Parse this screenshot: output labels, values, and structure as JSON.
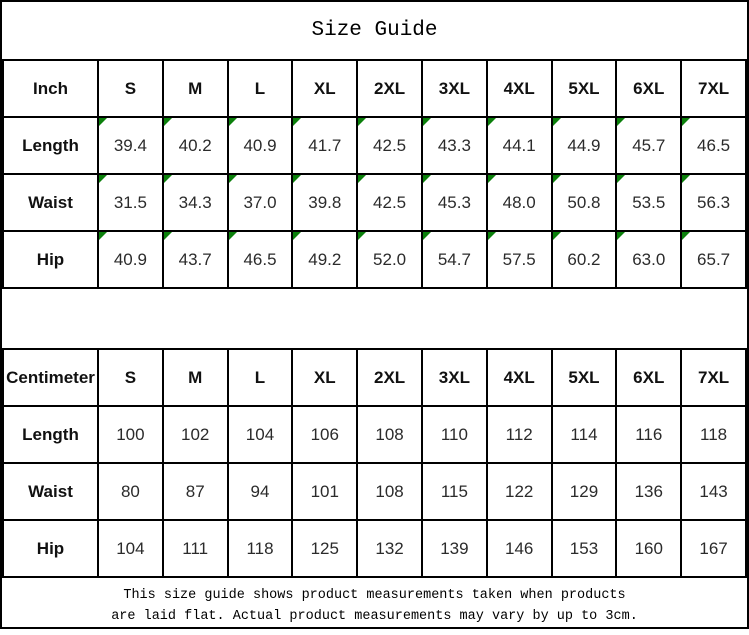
{
  "title": "Size Guide",
  "sizes": [
    "S",
    "M",
    "L",
    "XL",
    "2XL",
    "3XL",
    "4XL",
    "5XL",
    "6XL",
    "7XL"
  ],
  "inch_table": {
    "unit_label": "Inch",
    "rows": [
      {
        "label": "Length",
        "flagged": true,
        "values": [
          "39.4",
          "40.2",
          "40.9",
          "41.7",
          "42.5",
          "43.3",
          "44.1",
          "44.9",
          "45.7",
          "46.5"
        ]
      },
      {
        "label": "Waist",
        "flagged": true,
        "values": [
          "31.5",
          "34.3",
          "37.0",
          "39.8",
          "42.5",
          "45.3",
          "48.0",
          "50.8",
          "53.5",
          "56.3"
        ]
      },
      {
        "label": "Hip",
        "flagged": true,
        "values": [
          "40.9",
          "43.7",
          "46.5",
          "49.2",
          "52.0",
          "54.7",
          "57.5",
          "60.2",
          "63.0",
          "65.7"
        ]
      }
    ]
  },
  "cm_table": {
    "unit_label": "Centimeter",
    "rows": [
      {
        "label": "Length",
        "flagged": false,
        "values": [
          "100",
          "102",
          "104",
          "106",
          "108",
          "110",
          "112",
          "114",
          "116",
          "118"
        ]
      },
      {
        "label": "Waist",
        "flagged": false,
        "values": [
          "80",
          "87",
          "94",
          "101",
          "108",
          "115",
          "122",
          "129",
          "136",
          "143"
        ]
      },
      {
        "label": "Hip",
        "flagged": false,
        "values": [
          "104",
          "111",
          "118",
          "125",
          "132",
          "139",
          "146",
          "153",
          "160",
          "167"
        ]
      }
    ]
  },
  "footer": {
    "line1": "This size guide shows product measurements taken when products",
    "line2": "are laid flat. Actual product measurements may vary by up to 3cm."
  },
  "colors": {
    "flag_green": "#0b800b",
    "grid_black": "#000000",
    "background": "#ffffff"
  },
  "icons": {
    "cell_flag": "green-corner-flag-icon"
  }
}
